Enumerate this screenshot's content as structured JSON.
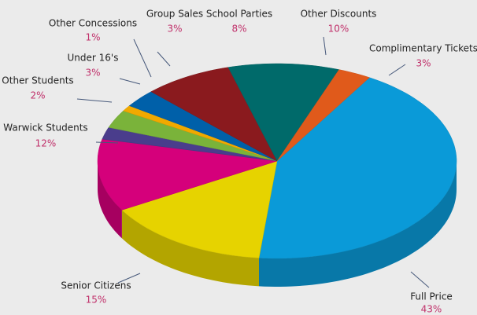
{
  "chart_data": {
    "type": "pie",
    "categories": [
      "Full Price",
      "Senior Citizens",
      "Warwick Students",
      "Other Students",
      "Under 16's",
      "Other Concessions",
      "Group Sales",
      "School Parties",
      "Other Discounts",
      "Complimentary Tickets"
    ],
    "values": [
      43,
      15,
      12,
      2,
      3,
      1,
      3,
      8,
      10,
      3
    ],
    "value_labels": [
      "43%",
      "15%",
      "12%",
      "2%",
      "3%",
      "1%",
      "3%",
      "8%",
      "10%",
      "3%"
    ],
    "colors": [
      "#0a9ad8",
      "#e6d300",
      "#d5007b",
      "#4a3d8c",
      "#7ab33a",
      "#f0a900",
      "#0060a9",
      "#8a1a1e",
      "#006a6a",
      "#e05a1b"
    ]
  }
}
